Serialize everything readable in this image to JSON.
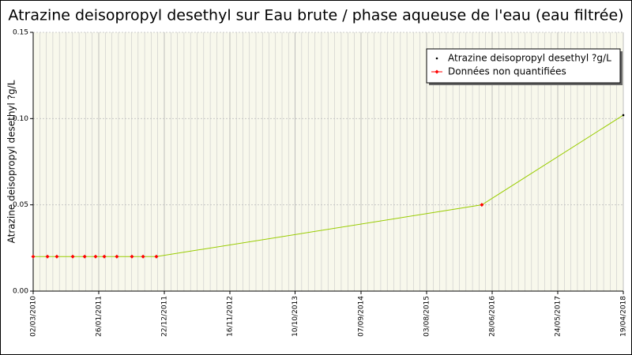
{
  "chart_data": {
    "type": "line",
    "title": "Atrazine deisopropyl desethyl sur Eau brute / phase aqueuse de l'eau (eau filtrée)",
    "y_label": "Atrazine deisopropyl desethyl ?g/L",
    "x": [
      "02/03/2010",
      "13/05/2010",
      "29/06/2010",
      "17/09/2010",
      "16/11/2010",
      "10/01/2011",
      "23/02/2011",
      "27/04/2011",
      "12/07/2011",
      "06/09/2011",
      "12/11/2011",
      "07/05/2016",
      "19/04/2018"
    ],
    "series": [
      {
        "name": "Atrazine deisopropyl desethyl ?g/L",
        "color": "#000000",
        "line_color": "#99cc00",
        "values": [
          0.02,
          0.02,
          0.02,
          0.02,
          0.02,
          0.02,
          0.02,
          0.02,
          0.02,
          0.02,
          0.02,
          0.05,
          0.102
        ]
      },
      {
        "name": "Données non quantifiées",
        "color": "#ff0000",
        "values": [
          0.02,
          0.02,
          0.02,
          0.02,
          0.02,
          0.02,
          0.02,
          0.02,
          0.02,
          0.02,
          0.02,
          0.05,
          null
        ]
      }
    ],
    "xlim": [
      "02/03/2010",
      "19/04/2018"
    ],
    "xticks": [
      "02/03/2010",
      "26/01/2011",
      "22/12/2011",
      "16/11/2012",
      "10/10/2013",
      "07/09/2014",
      "03/08/2015",
      "28/06/2016",
      "24/05/2017",
      "19/04/2018"
    ],
    "ylim": [
      0,
      0.15
    ],
    "yticks": [
      {
        "value": 0,
        "label": "0.00"
      },
      {
        "value": 0.05,
        "label": "0.05"
      },
      {
        "value": 0.1,
        "label": "0.10"
      },
      {
        "value": 0.15,
        "label": "0.15"
      }
    ],
    "grid": true,
    "minor_grid": true,
    "legend": "top-right"
  }
}
